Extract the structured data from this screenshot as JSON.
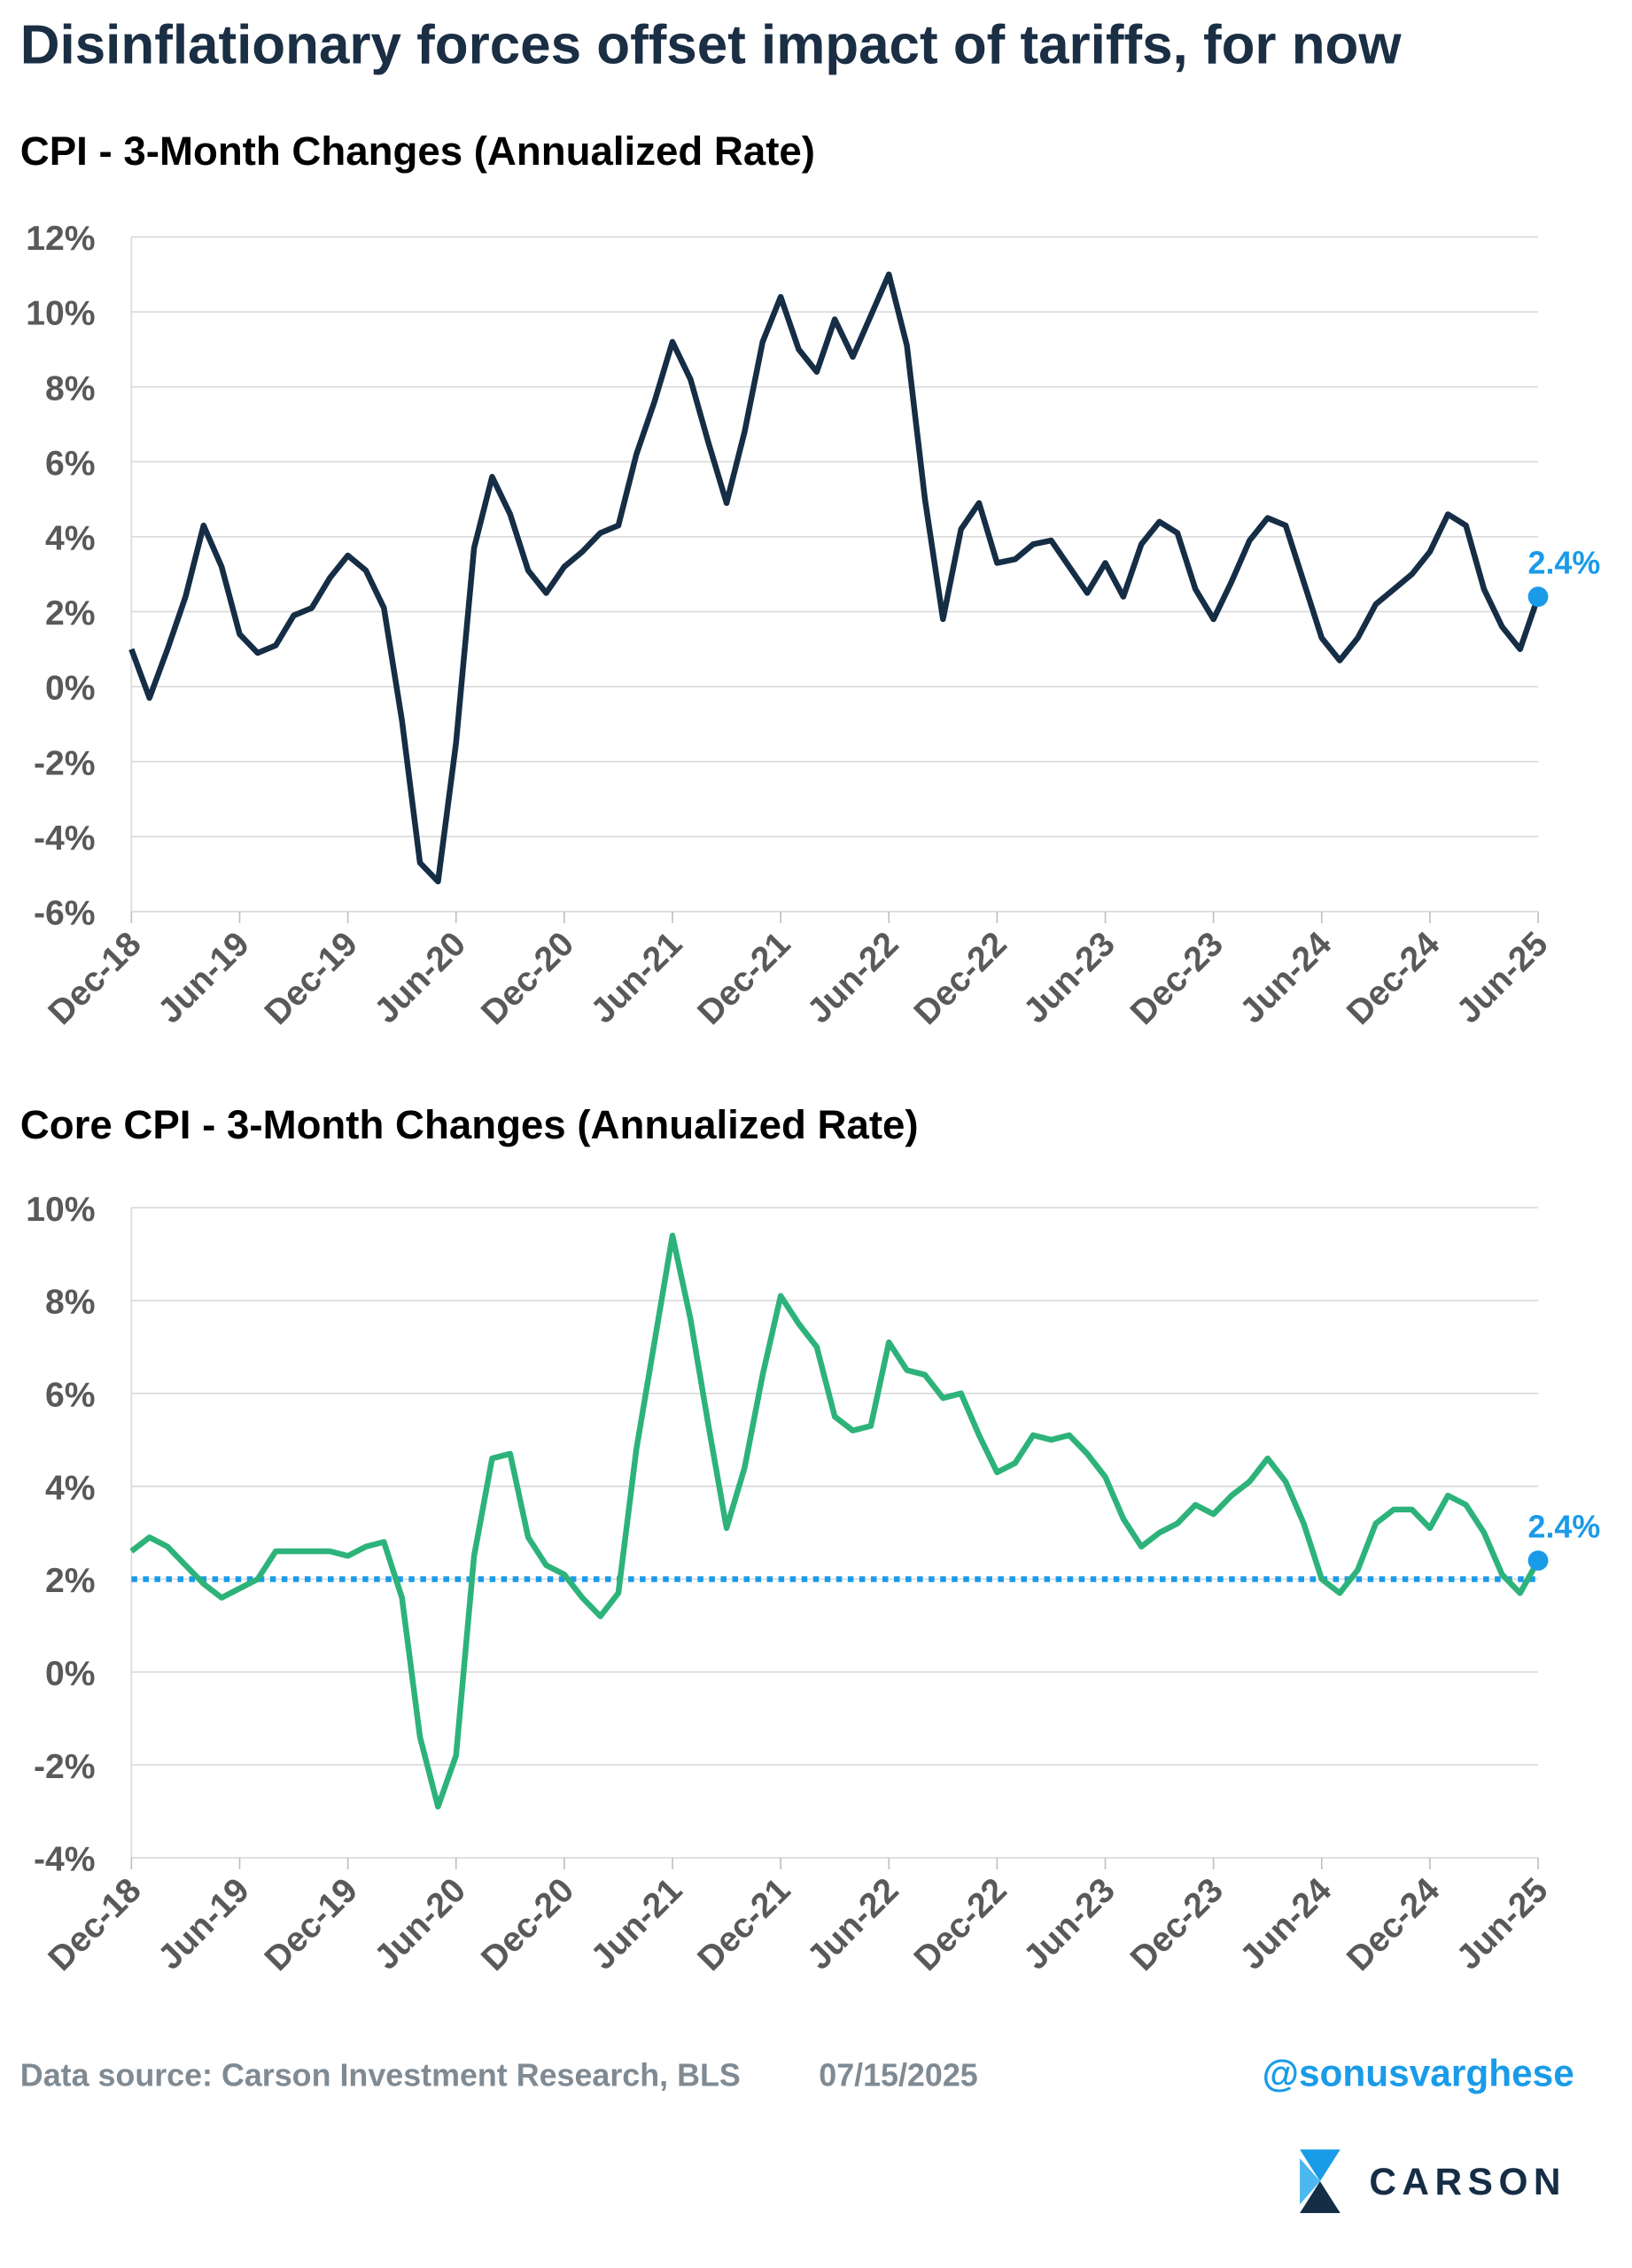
{
  "title": "Disinflationary forces offset impact of tariffs, for now",
  "footer": {
    "source": "Data source: Carson Investment Research, BLS",
    "date": "07/15/2025",
    "handle": "@sonusvarghese",
    "logo": "CARSON"
  },
  "chart_data": [
    {
      "type": "line",
      "title": "CPI - 3-Month Changes (Annualized Rate)",
      "categories": [
        "Dec-18",
        null,
        null,
        null,
        null,
        null,
        "Jun-19",
        null,
        null,
        null,
        null,
        null,
        "Dec-19",
        null,
        null,
        null,
        null,
        null,
        "Jun-20",
        null,
        null,
        null,
        null,
        null,
        "Dec-20",
        null,
        null,
        null,
        null,
        null,
        "Jun-21",
        null,
        null,
        null,
        null,
        null,
        "Dec-21",
        null,
        null,
        null,
        null,
        null,
        "Jun-22",
        null,
        null,
        null,
        null,
        null,
        "Dec-22",
        null,
        null,
        null,
        null,
        null,
        "Jun-23",
        null,
        null,
        null,
        null,
        null,
        "Dec-23",
        null,
        null,
        null,
        null,
        null,
        "Jun-24",
        null,
        null,
        null,
        null,
        null,
        "Dec-24",
        null,
        null,
        null,
        null,
        null,
        "Jun-25"
      ],
      "series": [
        {
          "color": "#152d45",
          "values": [
            1.0,
            -0.3,
            1.0,
            2.4,
            4.3,
            3.2,
            1.4,
            0.9,
            1.1,
            1.9,
            2.1,
            2.9,
            3.5,
            3.1,
            2.1,
            -0.9,
            -4.7,
            -5.2,
            -1.5,
            3.7,
            5.6,
            4.6,
            3.1,
            2.5,
            3.2,
            3.6,
            4.1,
            4.3,
            6.2,
            7.6,
            9.2,
            8.2,
            6.5,
            4.9,
            6.8,
            9.2,
            10.4,
            9.0,
            8.4,
            9.8,
            8.8,
            9.9,
            11.0,
            9.1,
            5.0,
            1.8,
            4.2,
            4.9,
            3.3,
            3.4,
            3.8,
            3.9,
            3.2,
            2.5,
            3.3,
            2.4,
            3.8,
            4.4,
            4.1,
            2.6,
            1.8,
            2.8,
            3.9,
            4.5,
            4.3,
            2.8,
            1.3,
            0.7,
            1.3,
            2.2,
            2.6,
            3.0,
            3.6,
            4.6,
            4.3,
            2.6,
            1.6,
            1.0,
            2.4
          ]
        }
      ],
      "end_label": "2.4%",
      "end_color": "#1a9be8",
      "ylim": [
        -6,
        12
      ],
      "yticks": [
        {
          "value": -6,
          "label": "-6%"
        },
        {
          "value": -4,
          "label": "-4%"
        },
        {
          "value": -2,
          "label": "-2%"
        },
        {
          "value": 0,
          "label": "0%"
        },
        {
          "value": 2,
          "label": "2%"
        },
        {
          "value": 4,
          "label": "4%"
        },
        {
          "value": 6,
          "label": "6%"
        },
        {
          "value": 8,
          "label": "8%"
        },
        {
          "value": 10,
          "label": "10%"
        },
        {
          "value": 12,
          "label": "12%"
        }
      ],
      "grid": true
    },
    {
      "type": "line",
      "title": "Core CPI - 3-Month Changes (Annualized Rate)",
      "categories": [
        "Dec-18",
        null,
        null,
        null,
        null,
        null,
        "Jun-19",
        null,
        null,
        null,
        null,
        null,
        "Dec-19",
        null,
        null,
        null,
        null,
        null,
        "Jun-20",
        null,
        null,
        null,
        null,
        null,
        "Dec-20",
        null,
        null,
        null,
        null,
        null,
        "Jun-21",
        null,
        null,
        null,
        null,
        null,
        "Dec-21",
        null,
        null,
        null,
        null,
        null,
        "Jun-22",
        null,
        null,
        null,
        null,
        null,
        "Dec-22",
        null,
        null,
        null,
        null,
        null,
        "Jun-23",
        null,
        null,
        null,
        null,
        null,
        "Dec-23",
        null,
        null,
        null,
        null,
        null,
        "Jun-24",
        null,
        null,
        null,
        null,
        null,
        "Dec-24",
        null,
        null,
        null,
        null,
        null,
        "Jun-25"
      ],
      "series": [
        {
          "color": "#2db37a",
          "values": [
            2.6,
            2.9,
            2.7,
            2.3,
            1.9,
            1.6,
            1.8,
            2.0,
            2.6,
            2.6,
            2.6,
            2.6,
            2.5,
            2.7,
            2.8,
            1.6,
            -1.4,
            -2.9,
            -1.8,
            2.5,
            4.6,
            4.7,
            2.9,
            2.3,
            2.1,
            1.6,
            1.2,
            1.7,
            4.8,
            7.1,
            9.4,
            7.6,
            5.3,
            3.1,
            4.4,
            6.4,
            8.1,
            7.5,
            7.0,
            5.5,
            5.2,
            5.3,
            7.1,
            6.5,
            6.4,
            5.9,
            6.0,
            5.1,
            4.3,
            4.5,
            5.1,
            5.0,
            5.1,
            4.7,
            4.2,
            3.3,
            2.7,
            3.0,
            3.2,
            3.6,
            3.4,
            3.8,
            4.1,
            4.6,
            4.1,
            3.2,
            2.0,
            1.7,
            2.2,
            3.2,
            3.5,
            3.5,
            3.1,
            3.8,
            3.6,
            3.0,
            2.1,
            1.7,
            2.4
          ]
        }
      ],
      "end_label": "2.4%",
      "end_color": "#1a9be8",
      "target_line": 2,
      "target_color": "#1a9be8",
      "ylim": [
        -4,
        10
      ],
      "yticks": [
        {
          "value": -4,
          "label": "-4%"
        },
        {
          "value": -2,
          "label": "-2%"
        },
        {
          "value": 0,
          "label": "0%"
        },
        {
          "value": 2,
          "label": "2%"
        },
        {
          "value": 4,
          "label": "4%"
        },
        {
          "value": 6,
          "label": "6%"
        },
        {
          "value": 8,
          "label": "8%"
        },
        {
          "value": 10,
          "label": "10%"
        }
      ],
      "grid": true
    }
  ]
}
